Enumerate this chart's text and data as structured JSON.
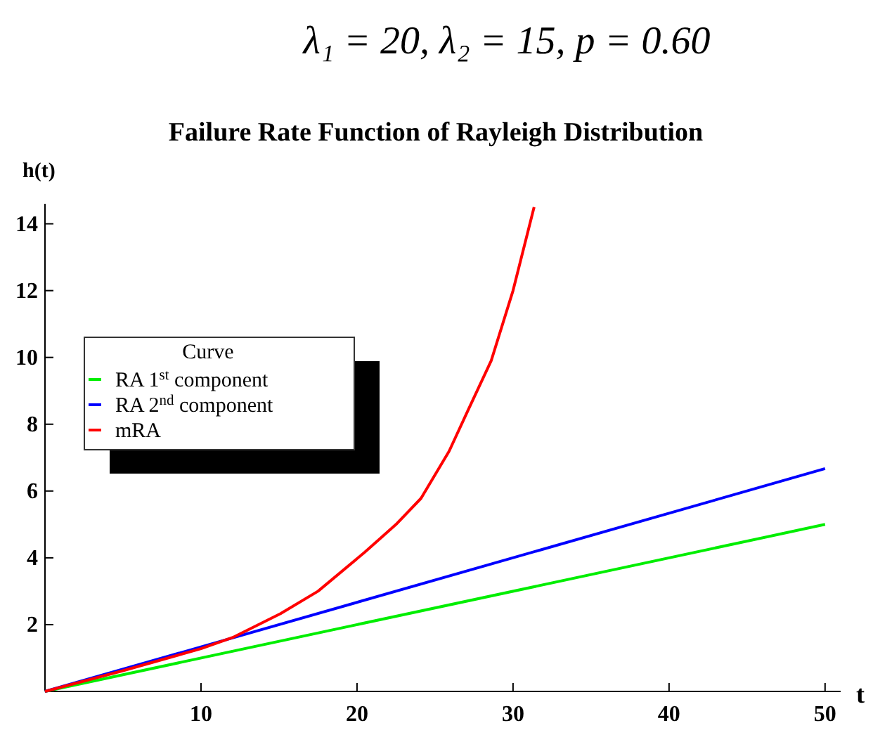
{
  "chart_data": {
    "type": "line",
    "title": "Failure Rate Function of Rayleigh Distribution",
    "annotations": [
      "λ₁ = 20, λ₂ = 15, p = 0.60"
    ],
    "xlabel": "t",
    "ylabel": "h(t)",
    "legend_title": "Curve",
    "legend": "left",
    "xlim": [
      0,
      51
    ],
    "ylim": [
      0,
      14.6
    ],
    "xticks": [
      10,
      20,
      30,
      40,
      50
    ],
    "yticks": [
      2,
      4,
      6,
      8,
      10,
      12,
      14
    ],
    "grid": false,
    "series": [
      {
        "name": "RA 1$^{st}$ component",
        "color": "#00ee00",
        "x": [
          0,
          50
        ],
        "values": [
          0,
          5
        ]
      },
      {
        "name": "RA 2$^{nd}$ component",
        "color": "#0000ff",
        "x": [
          0,
          50
        ],
        "values": [
          0,
          6.67
        ]
      },
      {
        "name": "mRA",
        "color": "#ff0000",
        "x": [
          0,
          5,
          10,
          12.1,
          15.1,
          17.5,
          20.5,
          22.5,
          24.1,
          25.9,
          27.1,
          28.6,
          30,
          31.35
        ],
        "values": [
          0,
          0.62,
          1.28,
          1.63,
          2.33,
          3.0,
          4.17,
          5.0,
          5.78,
          7.19,
          8.4,
          9.9,
          12.0,
          14.5
        ]
      }
    ]
  }
}
